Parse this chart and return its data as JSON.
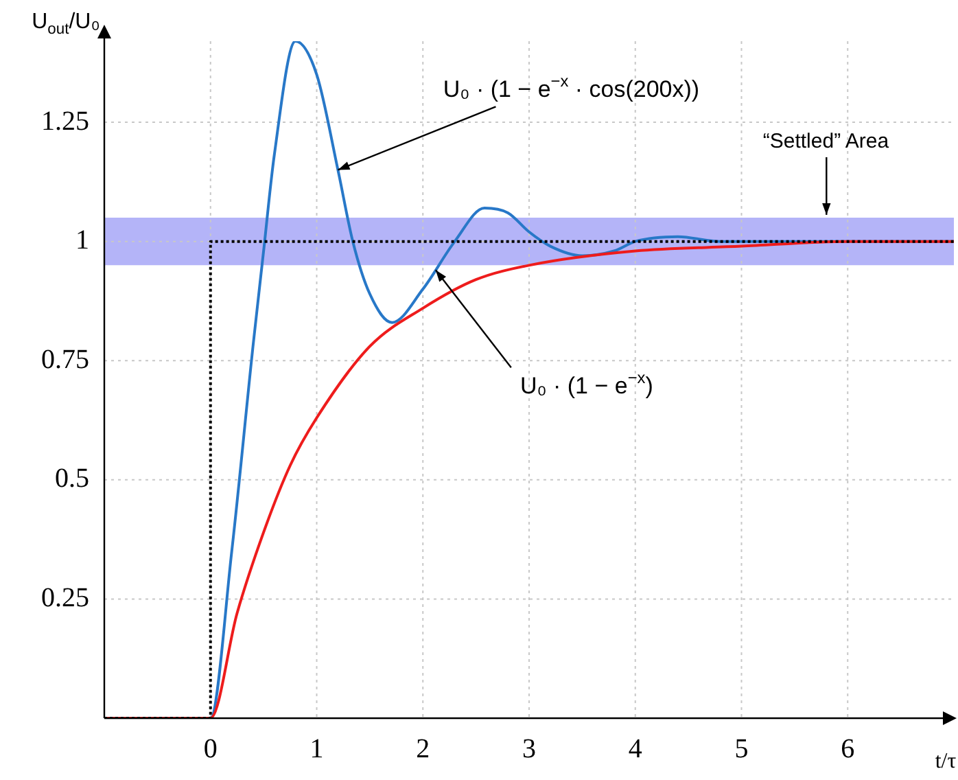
{
  "chart_data": {
    "type": "line",
    "ylabel": "U$_{out}$/U₀",
    "xlabel": "t/τ",
    "xlim": [
      -1,
      7
    ],
    "ylim": [
      0,
      1.42
    ],
    "xticks": [
      0,
      1,
      2,
      3,
      4,
      5,
      6
    ],
    "yticks": [
      0.25,
      0.5,
      0.75,
      1,
      1.25
    ],
    "grid": true,
    "legend": false,
    "series": [
      {
        "type": "step",
        "color": "#000000",
        "line_style": "dotted",
        "x": [
          -1,
          0,
          7
        ],
        "values": [
          0,
          1,
          1
        ]
      },
      {
        "type": "line",
        "color": "#ee1c1c",
        "x": [
          -1,
          0,
          0.25,
          0.5,
          0.75,
          1,
          1.5,
          2,
          2.5,
          3,
          4,
          5,
          6,
          7
        ],
        "values": [
          0,
          0,
          0.22,
          0.39,
          0.53,
          0.63,
          0.78,
          0.86,
          0.92,
          0.95,
          0.98,
          0.99,
          1,
          1
        ]
      },
      {
        "type": "line",
        "color": "#2878c8",
        "x": [
          -1,
          0,
          0.2,
          0.4,
          0.5,
          0.6,
          0.8,
          1.0,
          1.2,
          1.34,
          1.5,
          1.71,
          2.0,
          2.3,
          2.58,
          2.8,
          3.0,
          3.2,
          3.5,
          3.8,
          4.0,
          4.4,
          4.8,
          5.2,
          6,
          7
        ],
        "values": [
          0,
          0,
          0.35,
          0.78,
          0.98,
          1.18,
          1.42,
          1.35,
          1.15,
          1.0,
          0.89,
          0.83,
          0.9,
          1.0,
          1.07,
          1.06,
          1.02,
          0.99,
          0.97,
          0.98,
          1.0,
          1.01,
          1.0,
          1.0,
          1.0,
          1.0
        ]
      }
    ],
    "bands": [
      {
        "axis": "y",
        "from": 0.95,
        "to": 1.05,
        "label": "“Settled” Area",
        "color": "#b4b4f8"
      }
    ],
    "annotations": [
      {
        "text": "U₀ · (1 − e$^{−x}$ · cos(200x))",
        "x": 1.2,
        "y": 1.15
      },
      {
        "text": "U₀ · (1 − e$^{−x}$)",
        "x": 2.12,
        "y": 0.94
      }
    ]
  }
}
